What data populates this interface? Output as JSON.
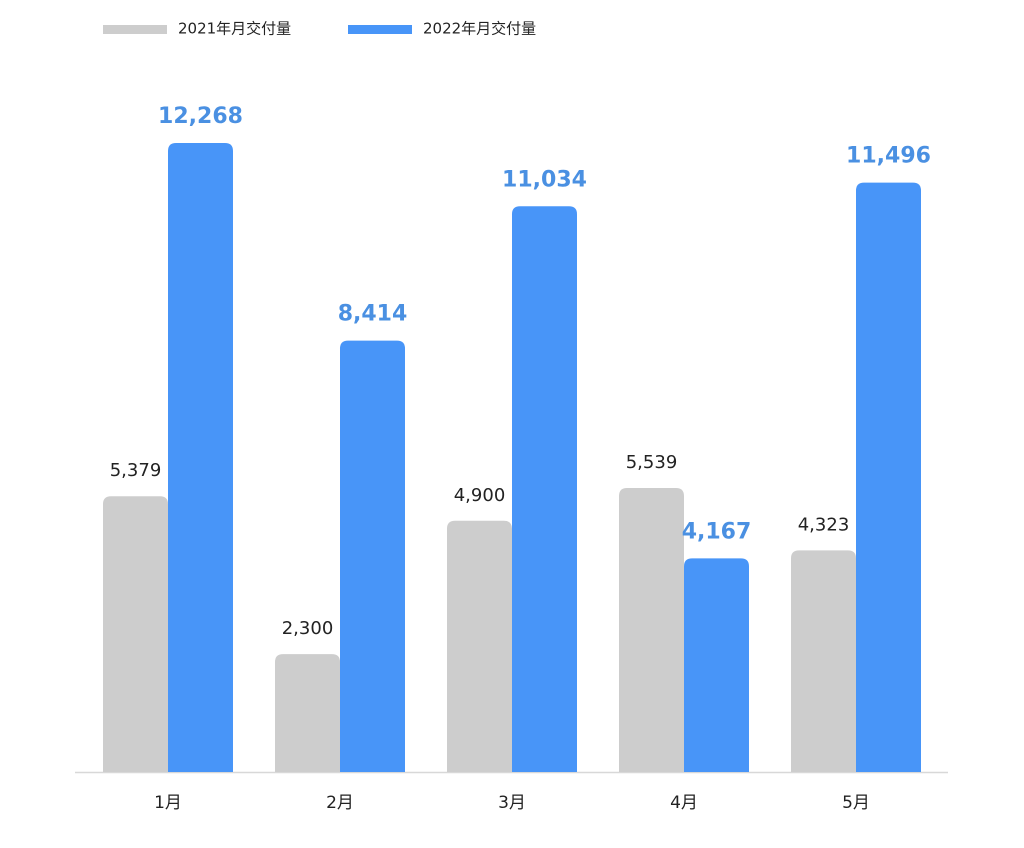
{
  "chart_data": {
    "type": "bar",
    "categories": [
      "1月",
      "2月",
      "3月",
      "4月",
      "5月"
    ],
    "series": [
      {
        "name": "2021年月交付量",
        "color": "#cdcdcd",
        "values": [
          5379,
          2300,
          4900,
          5539,
          4323
        ],
        "value_labels": [
          "5,379",
          "2,300",
          "4,900",
          "5,539",
          "4,323"
        ],
        "label_color": "#222222"
      },
      {
        "name": "2022年月交付量",
        "color": "#4895f8",
        "values": [
          12268,
          8414,
          11034,
          4167,
          11496
        ],
        "value_labels": [
          "12,268",
          "8,414",
          "11,034",
          "4,167",
          "11,496"
        ],
        "label_color": "#4a90e2"
      }
    ]
  }
}
